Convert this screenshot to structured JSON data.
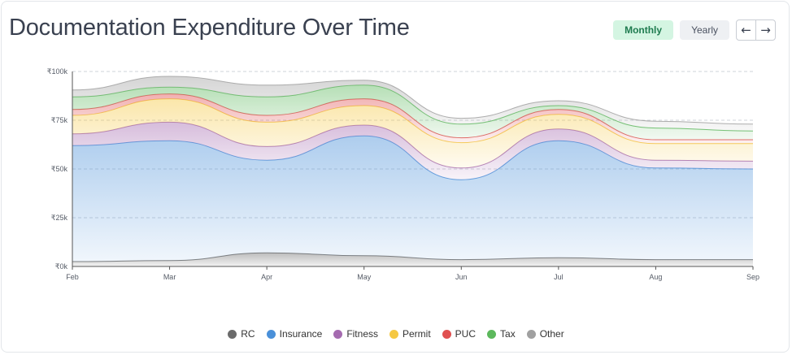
{
  "header": {
    "title": "Documentation Expenditure Over Time",
    "monthly_label": "Monthly",
    "yearly_label": "Yearly",
    "prev_icon": "←",
    "next_icon": "→"
  },
  "chart_data": {
    "type": "area",
    "stacked": true,
    "title": "",
    "xlabel": "",
    "ylabel": "",
    "ylim": [
      0,
      100000
    ],
    "yticks": [
      0,
      25000,
      50000,
      75000,
      100000
    ],
    "ytick_labels": [
      "₹0k",
      "₹25k",
      "₹50k",
      "₹75k",
      "₹100k"
    ],
    "categories": [
      "Feb",
      "Mar",
      "Apr",
      "May",
      "Jun",
      "Jul",
      "Aug",
      "Sep"
    ],
    "grid": true,
    "legend_position": "bottom",
    "series": [
      {
        "name": "RC",
        "color": "#6b6b6b",
        "values": [
          2500,
          3000,
          7000,
          5500,
          3500,
          4500,
          3500,
          3500
        ]
      },
      {
        "name": "Insurance",
        "color": "#4a90d9",
        "values": [
          59500,
          61500,
          47500,
          61500,
          41000,
          60000,
          47000,
          46500
        ]
      },
      {
        "name": "Fitness",
        "color": "#a56bb0",
        "values": [
          6000,
          9500,
          7000,
          5500,
          6000,
          6000,
          4000,
          4000
        ]
      },
      {
        "name": "Permit",
        "color": "#f5c842",
        "values": [
          9500,
          12000,
          12500,
          10000,
          13000,
          7500,
          8500,
          9000
        ]
      },
      {
        "name": "PUC",
        "color": "#e05050",
        "values": [
          3000,
          2500,
          3500,
          3500,
          2500,
          2500,
          2000,
          2000
        ]
      },
      {
        "name": "Tax",
        "color": "#5cb85c",
        "values": [
          6500,
          3500,
          9500,
          7000,
          7000,
          2000,
          6000,
          4500
        ]
      },
      {
        "name": "Other",
        "color": "#a0a0a0",
        "values": [
          3500,
          5500,
          6000,
          2500,
          3000,
          2500,
          3500,
          3500
        ]
      }
    ]
  }
}
